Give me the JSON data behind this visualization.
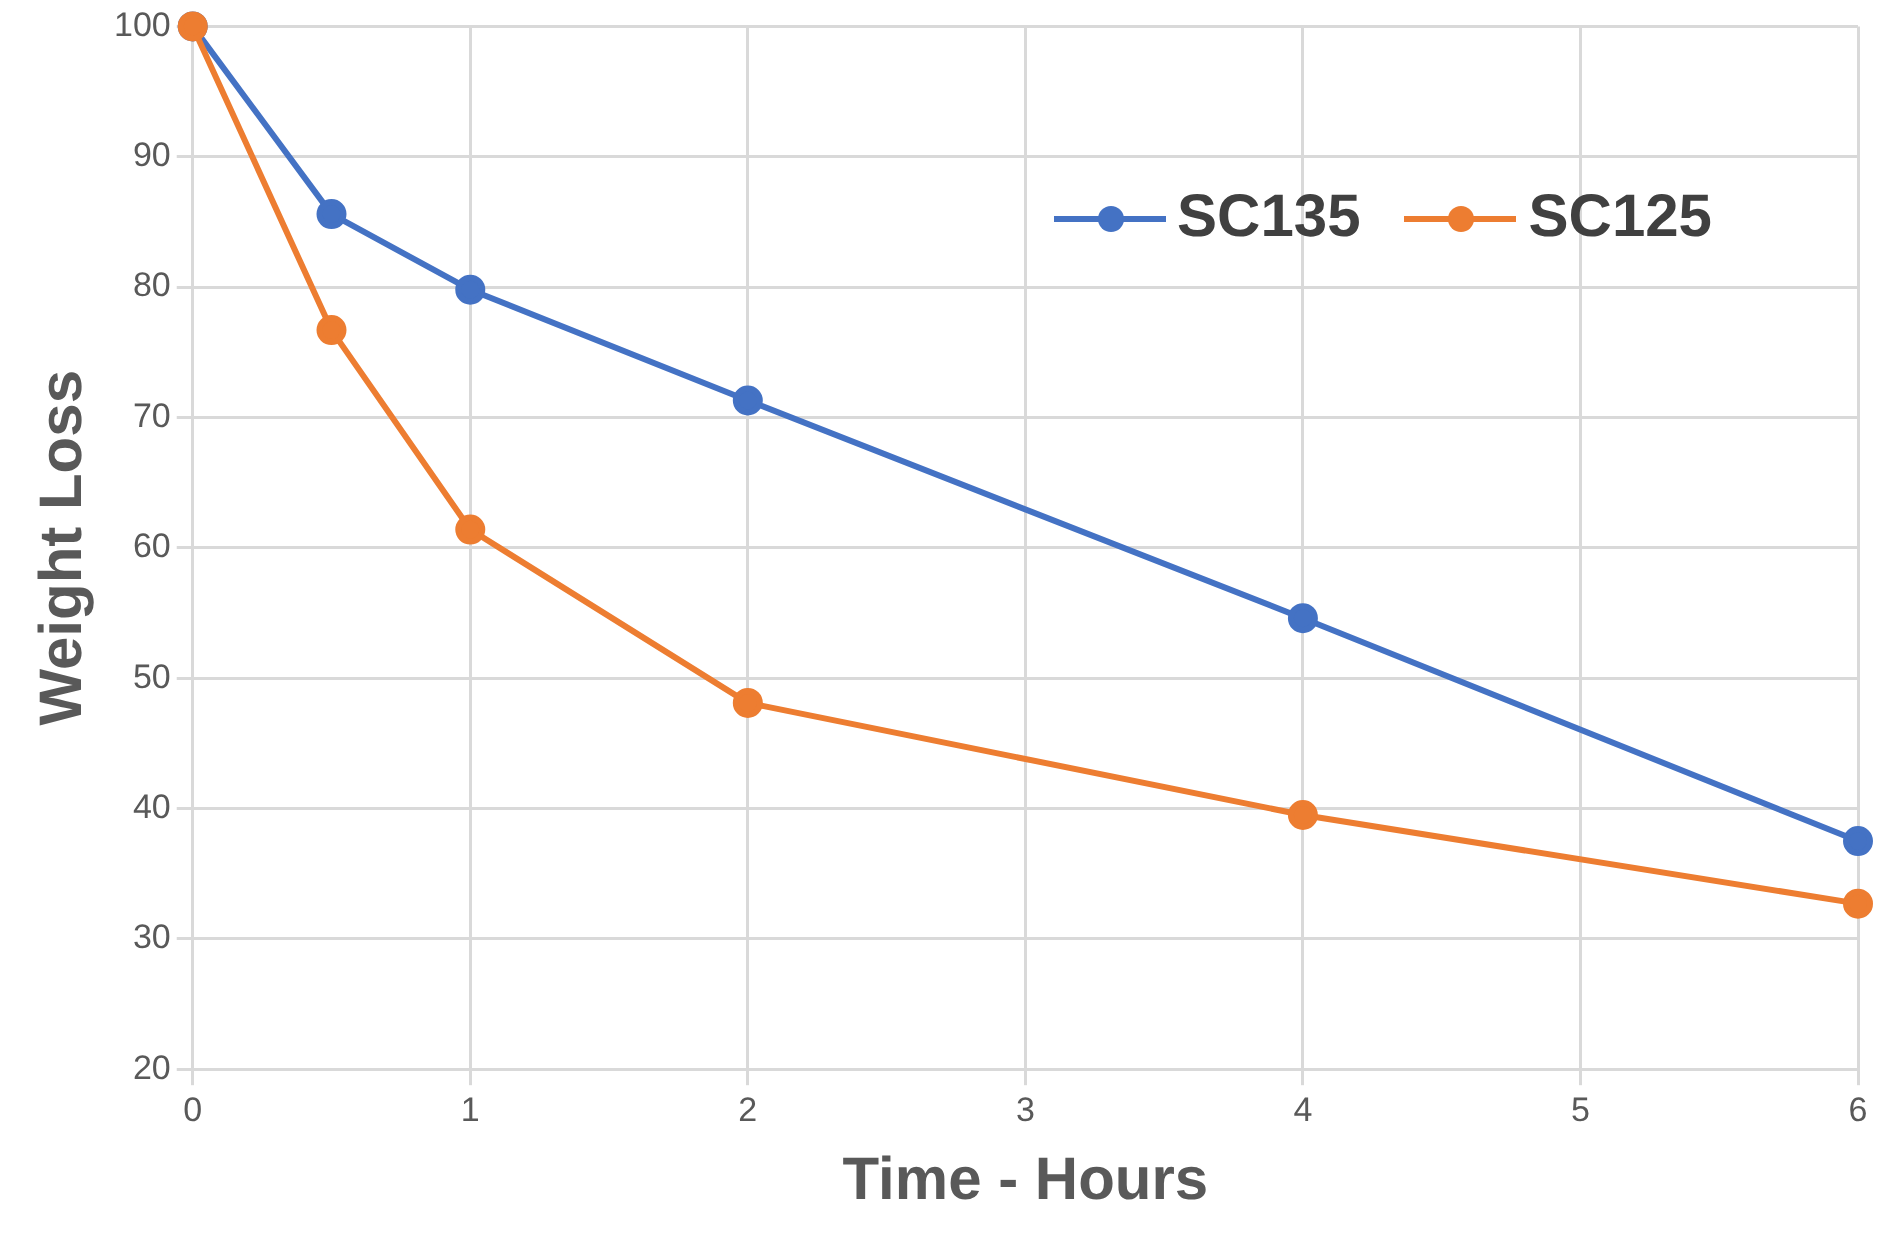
{
  "chart_data": {
    "type": "line",
    "xlabel": "Time - Hours",
    "ylabel": "Weight Loss",
    "x": [
      0,
      0.5,
      1,
      2,
      4,
      6
    ],
    "series": [
      {
        "name": "SC135",
        "color": "#4472c4",
        "values": [
          100,
          85.6,
          79.8,
          71.3,
          54.6,
          37.5
        ]
      },
      {
        "name": "SC125",
        "color": "#ed7d31",
        "values": [
          100,
          76.7,
          61.4,
          48.1,
          39.5,
          32.7
        ]
      }
    ],
    "xlim": [
      0,
      6
    ],
    "xticks": [
      0,
      1,
      2,
      3,
      4,
      5,
      6
    ],
    "ylim": [
      20,
      100
    ],
    "yticks": [
      20,
      30,
      40,
      50,
      60,
      70,
      80,
      90,
      100
    ],
    "grid": true,
    "legend": "top right",
    "marker": "circle",
    "line_style": "solid"
  }
}
